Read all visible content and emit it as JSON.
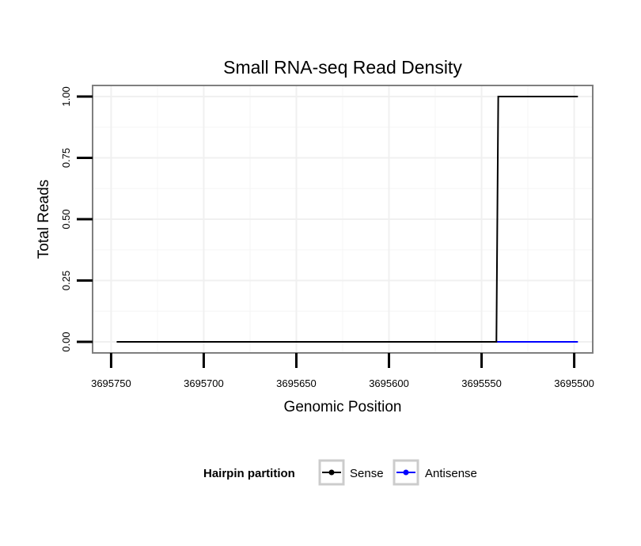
{
  "chart_data": {
    "type": "line",
    "title": "Small RNA-seq Read Density",
    "xlabel": "Genomic Position",
    "ylabel": "Total Reads",
    "xlim": [
      3695760,
      3695490
    ],
    "x_reversed": true,
    "ylim": [
      -0.045,
      1.045
    ],
    "x_ticks": [
      3695750,
      3695700,
      3695650,
      3695600,
      3695550,
      3695500
    ],
    "x_tick_labels": [
      "3695750",
      "3695700",
      "3695650",
      "3695600",
      "3695550",
      "3695500"
    ],
    "y_ticks": [
      0,
      0.25,
      0.5,
      0.75,
      1.0
    ],
    "y_tick_labels": [
      "0.00",
      "0.25",
      "0.50",
      "0.75",
      "1.00"
    ],
    "grid": true,
    "legend": {
      "title": "Hairpin partition",
      "placement": "bottom",
      "entries": [
        "Sense",
        "Antisense"
      ]
    },
    "series": [
      {
        "name": "Sense",
        "color": "#000000",
        "x": [
          3695747,
          3695542,
          3695541,
          3695498
        ],
        "y": [
          0,
          0,
          1,
          1
        ]
      },
      {
        "name": "Antisense",
        "color": "#0000ff",
        "x": [
          3695542,
          3695498
        ],
        "y": [
          0,
          0
        ]
      }
    ]
  }
}
